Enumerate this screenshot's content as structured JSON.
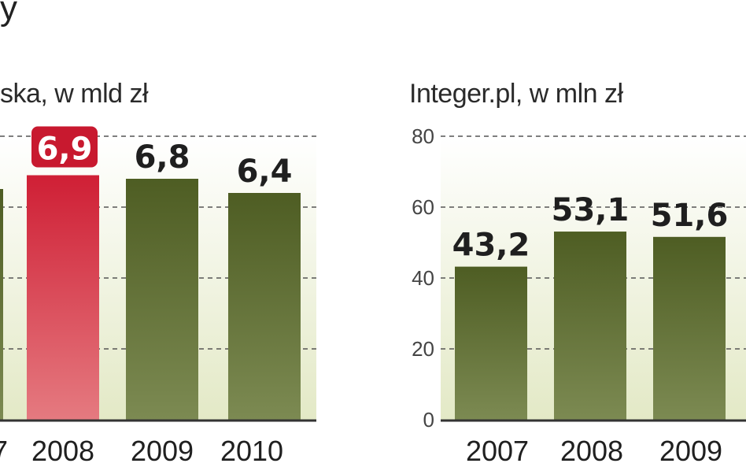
{
  "page": {
    "fragment_top_left": "y"
  },
  "chart_data": [
    {
      "type": "bar",
      "title": "ska, w mld zł",
      "categories": [
        "7",
        "2008",
        "2009",
        "2010"
      ],
      "values": [
        null,
        6.9,
        6.8,
        6.4
      ],
      "value_labels": [
        "",
        "6,9",
        "6,8",
        "6,4"
      ],
      "highlight_category": "2008",
      "ylim": [
        0,
        8
      ],
      "grid_values": [
        2,
        4,
        6,
        8
      ],
      "grid": "dashed",
      "colors": {
        "bar": "#5b6a2e",
        "highlight": "#d32a3c",
        "background_bottom": "#e3e9c6",
        "axis": "#333333"
      }
    },
    {
      "type": "bar",
      "title": "Integer.pl, w mln zł",
      "categories": [
        "2007",
        "2008",
        "2009"
      ],
      "values": [
        43.2,
        53.1,
        51.6
      ],
      "value_labels": [
        "43,2",
        "53,1",
        "51,6"
      ],
      "ylim": [
        0,
        80
      ],
      "yticks": [
        "0",
        "20",
        "40",
        "60",
        "80"
      ],
      "grid": "dashed",
      "colors": {
        "bar": "#5b6a2e",
        "background_bottom": "#e3e9c6",
        "axis": "#333333"
      }
    }
  ]
}
